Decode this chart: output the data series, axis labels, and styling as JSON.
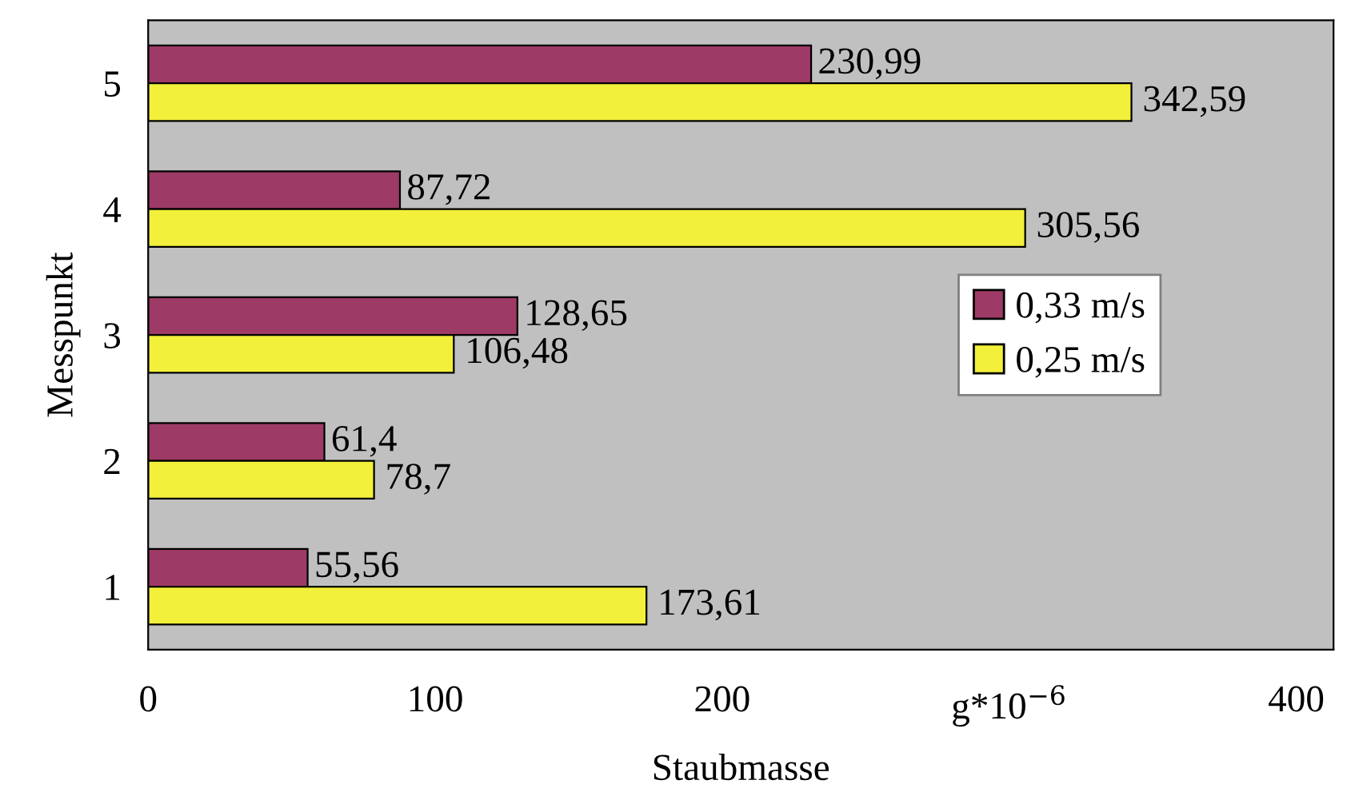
{
  "chart_data": {
    "type": "bar",
    "orientation": "horizontal",
    "xlabel": "Staubmasse",
    "ylabel": "Messpunkt",
    "categories": [
      "5",
      "4",
      "3",
      "2",
      "1"
    ],
    "series": [
      {
        "name": "0,33 m/s",
        "color": "#9e3a66",
        "values": [
          230.99,
          87.72,
          128.65,
          61.4,
          55.56
        ],
        "value_labels": [
          "230,99",
          "87,72",
          "128,65",
          "61,4",
          "55,56"
        ]
      },
      {
        "name": "0,25 m/s",
        "color": "#f2f03a",
        "values": [
          342.59,
          305.56,
          106.48,
          78.7,
          173.61
        ],
        "value_labels": [
          "342,59",
          "305,56",
          "106,48",
          "78,7",
          "173,61"
        ]
      }
    ],
    "xlim": [
      0,
      413
    ],
    "xticks": [
      0,
      100,
      200,
      {
        "value": 300,
        "label": "g*10$^{−6}$"
      },
      400
    ],
    "grid": false,
    "legend": "right"
  }
}
